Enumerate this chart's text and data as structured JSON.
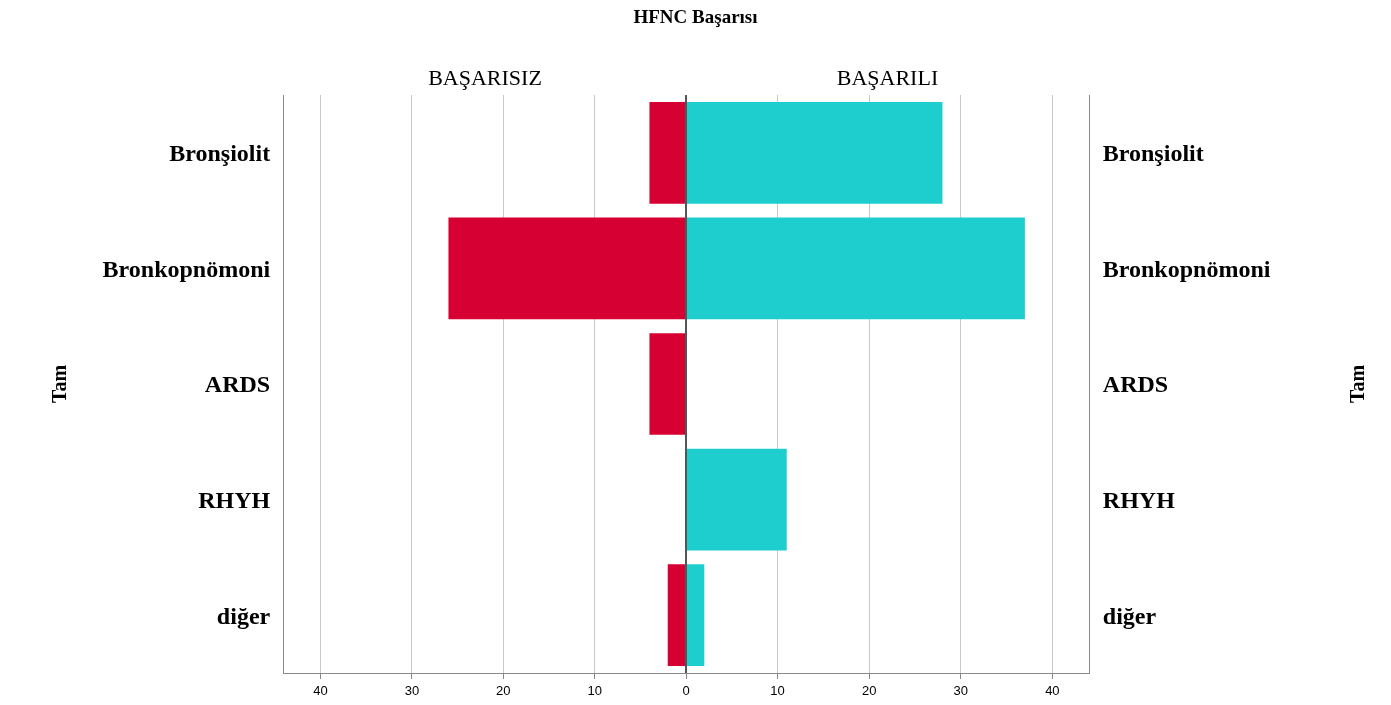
{
  "chart_data": [
    {
      "type": "bar",
      "orientation": "horizontal",
      "title": "HFNC Başarısı",
      "subtitle": "BAŞARISIZ",
      "ylabel": "Tam",
      "categories": [
        "Bronşiolit",
        "Bronkopnömoni",
        "ARDS",
        "RHYH",
        "diğer"
      ],
      "values": [
        4,
        26,
        4,
        0,
        2
      ],
      "color": "#d70032",
      "xlim": [
        44,
        0
      ],
      "xticks": [
        40,
        30,
        20,
        10,
        {
          "value": 0,
          "label": null
        }
      ],
      "grid": "x"
    },
    {
      "type": "bar",
      "orientation": "horizontal",
      "subtitle": "BAŞARILI",
      "ylabel": "Tam",
      "categories": [
        "Bronşiolit",
        "Bronkopnömoni",
        "ARDS",
        "RHYH",
        "diğer"
      ],
      "values": [
        28,
        37,
        0,
        11,
        2
      ],
      "color": "#1ecece",
      "xlim": [
        0,
        44
      ],
      "xticks": [
        0,
        10,
        20,
        30,
        40
      ],
      "grid": "x"
    }
  ]
}
